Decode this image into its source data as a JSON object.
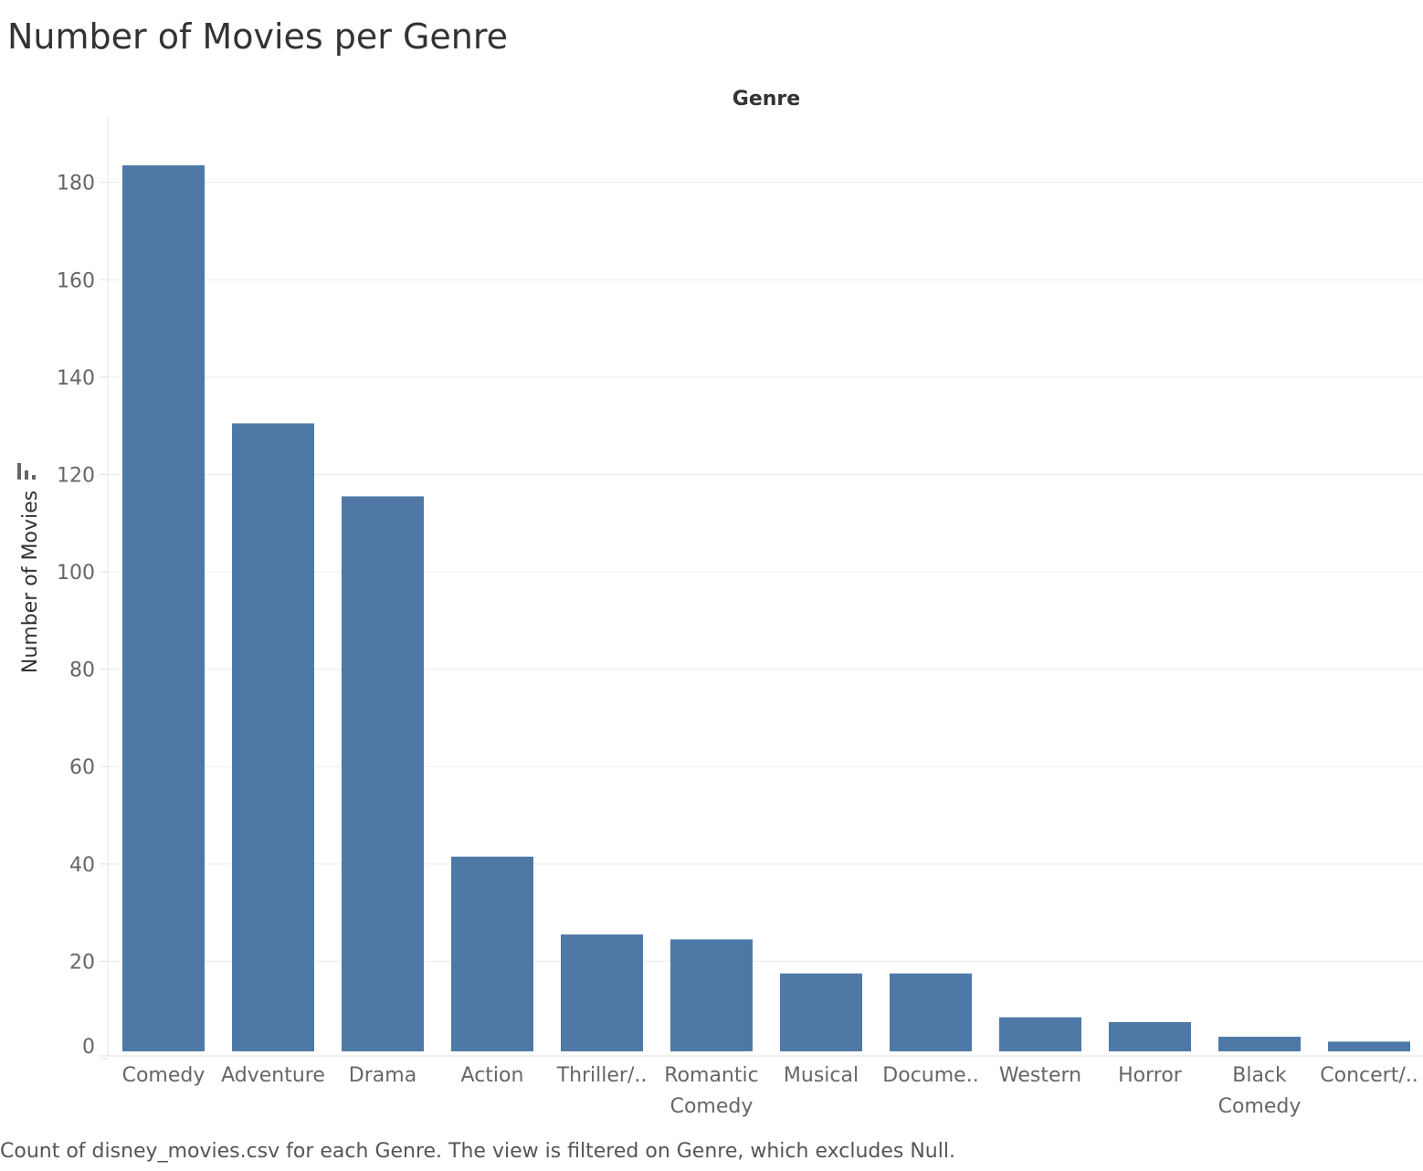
{
  "title": "Number of Movies per Genre",
  "caption": "Count of disney_movies.csv for each Genre. The view is filtered on Genre, which excludes Null.",
  "sort_icon": "bar-sort-icon",
  "colors": {
    "bar": "#4e79a7",
    "grid": "#ececec",
    "axis_text": "#666666"
  },
  "chart_data": {
    "type": "bar",
    "title": "Number of Movies per Genre",
    "column_header": "Genre",
    "xlabel": "",
    "ylabel": "Number of Movies",
    "ylim": [
      0,
      182
    ],
    "yticks": [
      0,
      20,
      40,
      60,
      80,
      100,
      120,
      140,
      160,
      180
    ],
    "grid": true,
    "legend": "none",
    "categories": [
      [
        "Comedy"
      ],
      [
        "Adventure"
      ],
      [
        "Drama"
      ],
      [
        "Action"
      ],
      [
        "Thriller/.."
      ],
      [
        "Romantic",
        "Comedy"
      ],
      [
        "Musical"
      ],
      [
        "Docume.."
      ],
      [
        "Western"
      ],
      [
        "Horror"
      ],
      [
        "Black",
        "Comedy"
      ],
      [
        "Concert/.."
      ]
    ],
    "values": [
      182,
      129,
      114,
      40,
      24,
      23,
      16,
      16,
      7,
      6,
      3,
      2
    ]
  }
}
